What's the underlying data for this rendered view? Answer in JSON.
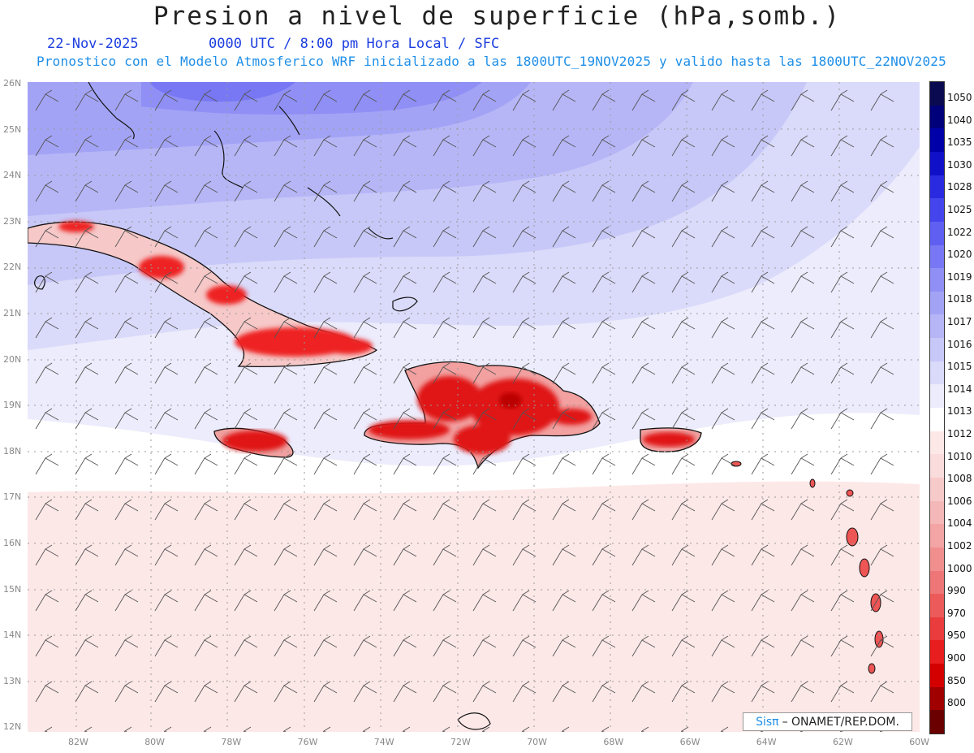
{
  "header": {
    "title": "Presion a nivel de superficie (hPa,somb.)",
    "date": "22-Nov-2025",
    "valid_time": "0000 UTC / 8:00 pm Hora Local / SFC",
    "description": "Pronostico con el Modelo Atmosferico WRF inicializado a las 1800UTC_19NOV2025 y valido hasta las  1800UTC_22NOV2025"
  },
  "axes": {
    "lat_labels": [
      "26N",
      "25N",
      "24N",
      "23N",
      "22N",
      "21N",
      "20N",
      "19N",
      "18N",
      "17N",
      "16N",
      "15N",
      "14N",
      "13N",
      "12N"
    ],
    "lon_labels": [
      "82W",
      "80W",
      "78W",
      "76W",
      "74W",
      "72W",
      "70W",
      "68W",
      "66W",
      "64W",
      "62W",
      "60W"
    ]
  },
  "colorbar": {
    "labels": [
      "1050",
      "1040",
      "1035",
      "1030",
      "1028",
      "1025",
      "1022",
      "1020",
      "1019",
      "1018",
      "1017",
      "1016",
      "1015",
      "1014",
      "1013",
      "1012",
      "1010",
      "1008",
      "1006",
      "1004",
      "1002",
      "1000",
      "990",
      "970",
      "950",
      "900",
      "850",
      "800"
    ],
    "colors": [
      "#0a0a50",
      "#00007a",
      "#0000a8",
      "#1010c8",
      "#2a2ae0",
      "#4545ee",
      "#5f5ff2",
      "#7878f5",
      "#8f8ff5",
      "#a3a3f6",
      "#b6b6f7",
      "#c8c8f8",
      "#dadafa",
      "#ececfc",
      "#ffffff",
      "#fde8e8",
      "#fadcdc",
      "#f7caca",
      "#f5b8b8",
      "#f3a4a4",
      "#f18f8f",
      "#ee7676",
      "#ec5a5a",
      "#ea3c3c",
      "#e81d1d",
      "#d40000",
      "#a00000",
      "#6a0000"
    ]
  },
  "credit": {
    "brand": "Sisπ",
    "text": "– ONAMET/REP.DOM."
  }
}
